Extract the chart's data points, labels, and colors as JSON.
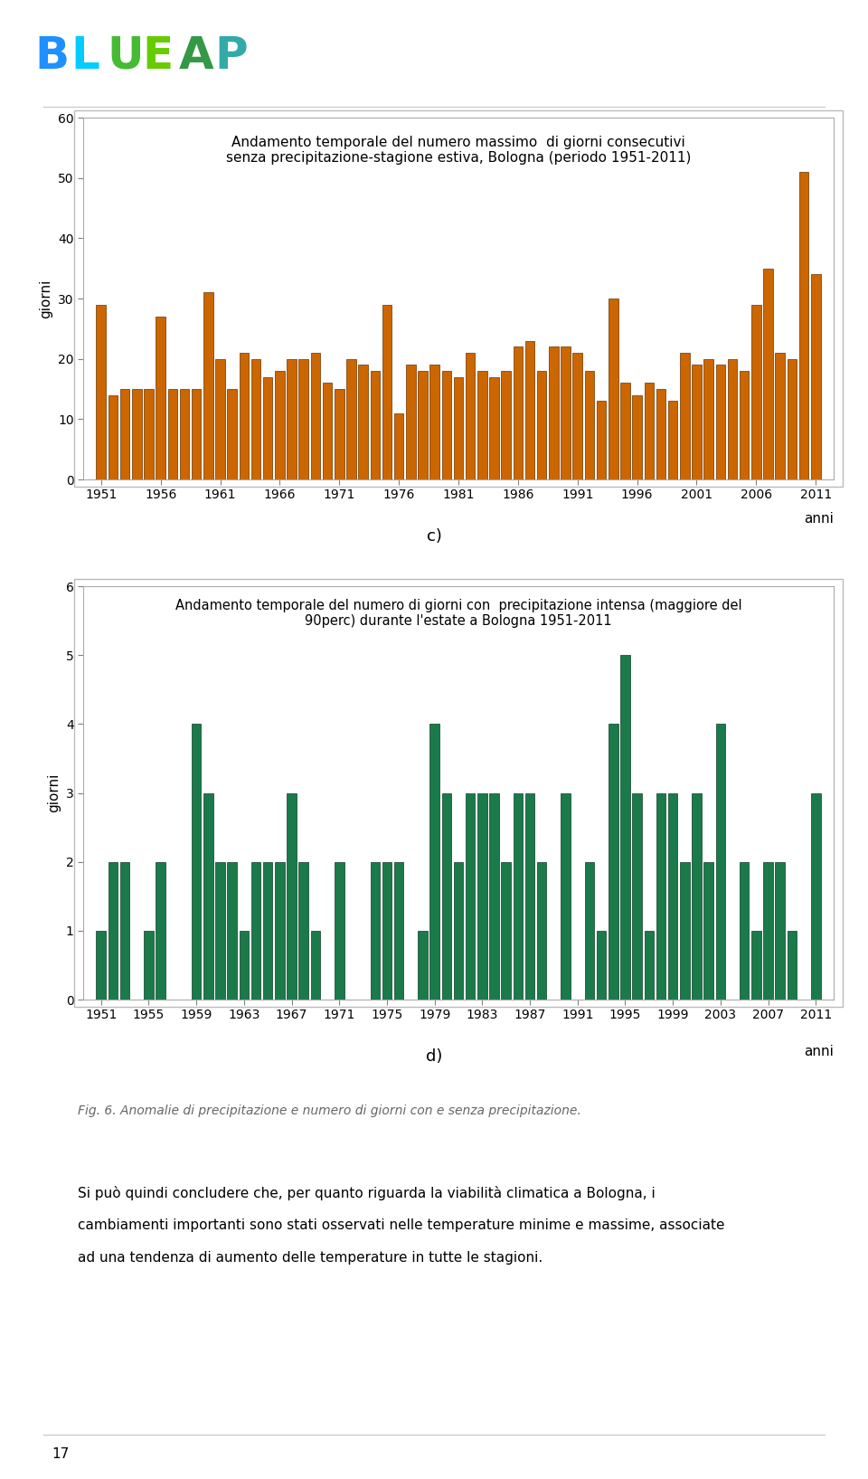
{
  "chart_c": {
    "title_line1": "Andamento temporale del numero massimo  di giorni consecutivi",
    "title_line2": "senza precipitazione-stagione estiva, Bologna (periodo 1951-2011)",
    "ylabel": "giorni",
    "xlabel": "anni",
    "ylim": [
      0,
      60
    ],
    "yticks": [
      0,
      10,
      20,
      30,
      40,
      50,
      60
    ],
    "xticks": [
      1951,
      1956,
      1961,
      1966,
      1971,
      1976,
      1981,
      1986,
      1991,
      1996,
      2001,
      2006,
      2011
    ],
    "bar_color": "#CC6600",
    "bar_edge_color": "#663300",
    "values": {
      "1951": 29,
      "1952": 14,
      "1953": 15,
      "1954": 15,
      "1955": 15,
      "1956": 27,
      "1957": 15,
      "1958": 15,
      "1959": 15,
      "1960": 31,
      "1961": 20,
      "1962": 15,
      "1963": 21,
      "1964": 20,
      "1965": 17,
      "1966": 18,
      "1967": 20,
      "1968": 20,
      "1969": 21,
      "1970": 16,
      "1971": 15,
      "1972": 20,
      "1973": 19,
      "1974": 18,
      "1975": 29,
      "1976": 11,
      "1977": 19,
      "1978": 18,
      "1979": 19,
      "1980": 18,
      "1981": 17,
      "1982": 21,
      "1983": 18,
      "1984": 17,
      "1985": 18,
      "1986": 22,
      "1987": 23,
      "1988": 18,
      "1989": 22,
      "1990": 22,
      "1991": 21,
      "1992": 18,
      "1993": 13,
      "1994": 30,
      "1995": 16,
      "1996": 14,
      "1997": 16,
      "1998": 15,
      "1999": 13,
      "2000": 21,
      "2001": 19,
      "2002": 20,
      "2003": 19,
      "2004": 20,
      "2005": 18,
      "2006": 29,
      "2007": 35,
      "2008": 21,
      "2009": 20,
      "2010": 51,
      "2011": 34
    }
  },
  "chart_d": {
    "title_line1": "Andamento temporale del numero di giorni con  precipitazione intensa (maggiore del",
    "title_line2": "90perc) durante l'estate a Bologna 1951-2011",
    "ylabel": "giorni",
    "xlabel": "anni",
    "ylim": [
      0,
      6
    ],
    "yticks": [
      0,
      1,
      2,
      3,
      4,
      5,
      6
    ],
    "xticks": [
      1951,
      1955,
      1959,
      1963,
      1967,
      1971,
      1975,
      1979,
      1983,
      1987,
      1991,
      1995,
      1999,
      2003,
      2007,
      2011
    ],
    "bar_color": "#1A7A4A",
    "bar_edge_color": "#0D3D25",
    "values": {
      "1951": 1,
      "1952": 2,
      "1953": 2,
      "1954": 0,
      "1955": 1,
      "1956": 2,
      "1957": 0,
      "1958": 0,
      "1959": 4,
      "1960": 3,
      "1961": 2,
      "1962": 2,
      "1963": 1,
      "1964": 2,
      "1965": 2,
      "1966": 2,
      "1967": 3,
      "1968": 2,
      "1969": 1,
      "1970": 0,
      "1971": 2,
      "1972": 0,
      "1973": 0,
      "1974": 2,
      "1975": 2,
      "1976": 2,
      "1977": 0,
      "1978": 1,
      "1979": 4,
      "1980": 3,
      "1981": 2,
      "1982": 3,
      "1983": 3,
      "1984": 3,
      "1985": 2,
      "1986": 3,
      "1987": 3,
      "1988": 2,
      "1989": 0,
      "1990": 3,
      "1991": 0,
      "1992": 2,
      "1993": 1,
      "1994": 4,
      "1995": 5,
      "1996": 3,
      "1997": 1,
      "1998": 3,
      "1999": 3,
      "2000": 2,
      "2001": 3,
      "2002": 2,
      "2003": 4,
      "2004": 0,
      "2005": 2,
      "2006": 1,
      "2007": 2,
      "2008": 2,
      "2009": 1,
      "2010": 0,
      "2011": 3
    }
  },
  "label_c": "c)",
  "label_d": "d)",
  "fig_caption": "Fig. 6. Anomalie di precipitazione e numero di giorni con e senza precipitazione.",
  "body_text_line1": "Si può quindi concludere che, per quanto riguarda la viabilità climatica a Bologna, i",
  "body_text_line2": "cambiamenti importanti sono stati osservati nelle temperature minime e massime, associate",
  "body_text_line3": "ad una tendenza di aumento delle temperature in tutte le stagioni.",
  "page_number": "17",
  "logo_text": "BLUEAP",
  "logo_letter_colors": [
    "#1E90FF",
    "#00CCFF",
    "#44BB33",
    "#66CC00",
    "#339944",
    "#33AAAA",
    "#3399CC"
  ],
  "background_color": "#FFFFFF",
  "plot_bg_color": "#FFFFFF",
  "border_color": "#AAAAAA"
}
